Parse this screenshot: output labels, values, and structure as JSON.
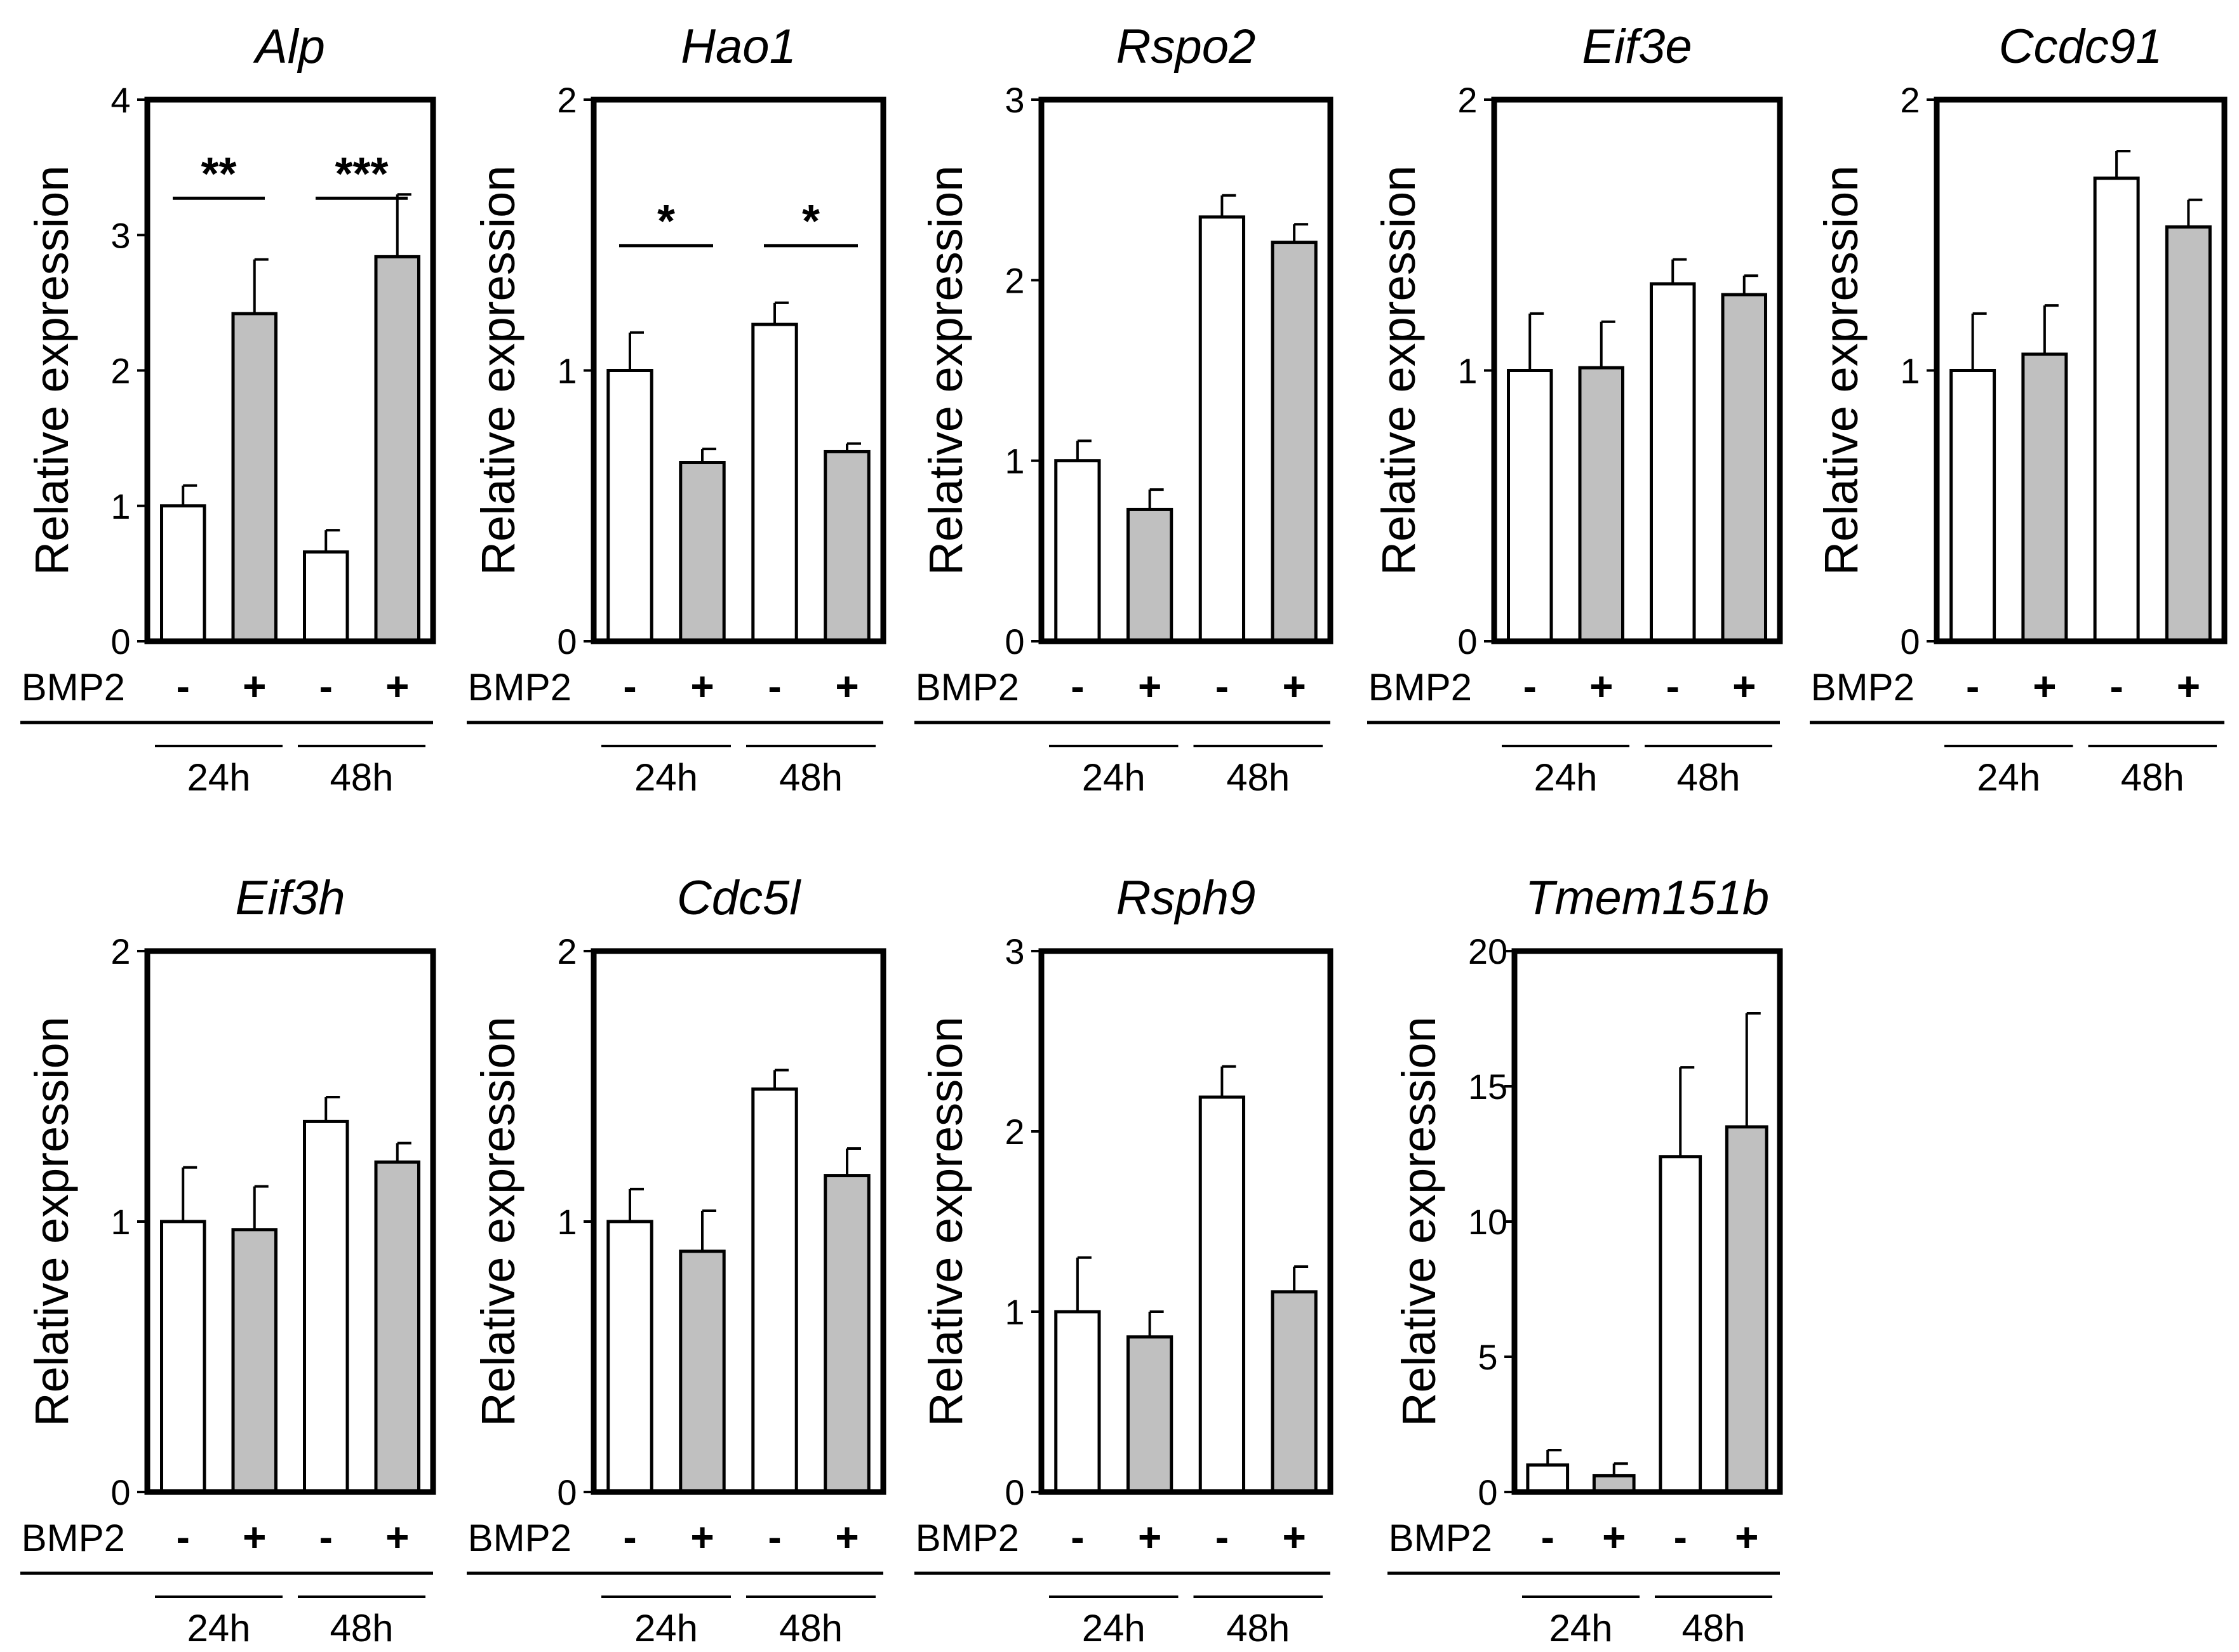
{
  "chart_data": [
    {
      "type": "bar",
      "title": "Alp",
      "ylabel": "Relative expression",
      "ylim": [
        0,
        4
      ],
      "yticks": [
        "0",
        "1",
        "2",
        "3",
        "4"
      ],
      "categories": [
        "24h -",
        "24h +",
        "48h -",
        "48h +"
      ],
      "values": [
        1.0,
        2.42,
        0.66,
        2.84
      ],
      "errors": [
        0.15,
        0.4,
        0.16,
        0.46
      ],
      "condition_label": "BMP2",
      "signs": [
        "-",
        "+",
        "-",
        "+"
      ],
      "timepoints": [
        "24h",
        "48h"
      ],
      "bar_colors": [
        "#ffffff",
        "#c0c0c0",
        "#ffffff",
        "#c0c0c0"
      ],
      "significance": [
        {
          "text": "**",
          "group": 0,
          "y": 3.45
        },
        {
          "text": "***",
          "group": 1,
          "y": 3.45
        }
      ]
    },
    {
      "type": "bar",
      "title": "Hao1",
      "ylabel": "Relative expression",
      "ylim": [
        0,
        2
      ],
      "yticks": [
        "0",
        "1",
        "2"
      ],
      "categories": [
        "24h -",
        "24h +",
        "48h -",
        "48h +"
      ],
      "values": [
        1.0,
        0.66,
        1.17,
        0.7
      ],
      "errors": [
        0.14,
        0.05,
        0.08,
        0.03
      ],
      "condition_label": "BMP2",
      "signs": [
        "-",
        "+",
        "-",
        "+"
      ],
      "timepoints": [
        "24h",
        "48h"
      ],
      "bar_colors": [
        "#ffffff",
        "#c0c0c0",
        "#ffffff",
        "#c0c0c0"
      ],
      "significance": [
        {
          "text": "*",
          "group": 0,
          "y": 1.55
        },
        {
          "text": "*",
          "group": 1,
          "y": 1.55
        }
      ]
    },
    {
      "type": "bar",
      "title": "Rspo2",
      "ylabel": "Relative expression",
      "ylim": [
        0,
        3
      ],
      "yticks": [
        "0",
        "1",
        "2",
        "3"
      ],
      "categories": [
        "24h -",
        "24h +",
        "48h -",
        "48h +"
      ],
      "values": [
        1.0,
        0.73,
        2.35,
        2.21
      ],
      "errors": [
        0.11,
        0.11,
        0.12,
        0.1
      ],
      "condition_label": "BMP2",
      "signs": [
        "-",
        "+",
        "-",
        "+"
      ],
      "timepoints": [
        "24h",
        "48h"
      ],
      "bar_colors": [
        "#ffffff",
        "#c0c0c0",
        "#ffffff",
        "#c0c0c0"
      ],
      "significance": []
    },
    {
      "type": "bar",
      "title": "Eif3e",
      "ylabel": "Relative expression",
      "ylim": [
        0,
        2
      ],
      "yticks": [
        "0",
        "1",
        "2"
      ],
      "categories": [
        "24h -",
        "24h +",
        "48h -",
        "48h +"
      ],
      "values": [
        1.0,
        1.01,
        1.32,
        1.28
      ],
      "errors": [
        0.21,
        0.17,
        0.09,
        0.07
      ],
      "condition_label": "BMP2",
      "signs": [
        "-",
        "+",
        "-",
        "+"
      ],
      "timepoints": [
        "24h",
        "48h"
      ],
      "bar_colors": [
        "#ffffff",
        "#c0c0c0",
        "#ffffff",
        "#c0c0c0"
      ],
      "significance": []
    },
    {
      "type": "bar",
      "title": "Ccdc91",
      "ylabel": "Relative expression",
      "ylim": [
        0,
        2
      ],
      "yticks": [
        "0",
        "1",
        "2"
      ],
      "categories": [
        "24h -",
        "24h +",
        "48h -",
        "48h +"
      ],
      "values": [
        1.0,
        1.06,
        1.71,
        1.53
      ],
      "errors": [
        0.21,
        0.18,
        0.1,
        0.1
      ],
      "condition_label": "BMP2",
      "signs": [
        "-",
        "+",
        "-",
        "+"
      ],
      "timepoints": [
        "24h",
        "48h"
      ],
      "bar_colors": [
        "#ffffff",
        "#c0c0c0",
        "#ffffff",
        "#c0c0c0"
      ],
      "significance": []
    },
    {
      "type": "bar",
      "title": "Eif3h",
      "ylabel": "Relative expression",
      "ylim": [
        0,
        2
      ],
      "yticks": [
        "0",
        "1",
        "2"
      ],
      "categories": [
        "24h -",
        "24h +",
        "48h -",
        "48h +"
      ],
      "values": [
        1.0,
        0.97,
        1.37,
        1.22
      ],
      "errors": [
        0.2,
        0.16,
        0.09,
        0.07
      ],
      "condition_label": "BMP2",
      "signs": [
        "-",
        "+",
        "-",
        "+"
      ],
      "timepoints": [
        "24h",
        "48h"
      ],
      "bar_colors": [
        "#ffffff",
        "#c0c0c0",
        "#ffffff",
        "#c0c0c0"
      ],
      "significance": []
    },
    {
      "type": "bar",
      "title": "Cdc5l",
      "ylabel": "Relative expression",
      "ylim": [
        0,
        2
      ],
      "yticks": [
        "0",
        "1",
        "2"
      ],
      "categories": [
        "24h -",
        "24h +",
        "48h -",
        "48h +"
      ],
      "values": [
        1.0,
        0.89,
        1.49,
        1.17
      ],
      "errors": [
        0.12,
        0.15,
        0.07,
        0.1
      ],
      "condition_label": "BMP2",
      "signs": [
        "-",
        "+",
        "-",
        "+"
      ],
      "timepoints": [
        "24h",
        "48h"
      ],
      "bar_colors": [
        "#ffffff",
        "#c0c0c0",
        "#ffffff",
        "#c0c0c0"
      ],
      "significance": []
    },
    {
      "type": "bar",
      "title": "Rsph9",
      "ylabel": "Relative expression",
      "ylim": [
        0,
        3
      ],
      "yticks": [
        "0",
        "1",
        "2",
        "3"
      ],
      "categories": [
        "24h -",
        "24h +",
        "48h -",
        "48h +"
      ],
      "values": [
        1.0,
        0.86,
        2.19,
        1.11
      ],
      "errors": [
        0.3,
        0.14,
        0.17,
        0.14
      ],
      "condition_label": "BMP2",
      "signs": [
        "-",
        "+",
        "-",
        "+"
      ],
      "timepoints": [
        "24h",
        "48h"
      ],
      "bar_colors": [
        "#ffffff",
        "#c0c0c0",
        "#ffffff",
        "#c0c0c0"
      ],
      "significance": []
    },
    {
      "type": "bar",
      "title": "Tmem151b",
      "ylabel": "Relative expression",
      "ylim": [
        0,
        20
      ],
      "yticks": [
        "0",
        "5",
        "10",
        "15",
        "20"
      ],
      "categories": [
        "24h -",
        "24h +",
        "48h -",
        "48h +"
      ],
      "values": [
        1.0,
        0.6,
        12.4,
        13.5
      ],
      "errors": [
        0.55,
        0.45,
        3.3,
        4.2
      ],
      "condition_label": "BMP2",
      "signs": [
        "-",
        "+",
        "-",
        "+"
      ],
      "timepoints": [
        "24h",
        "48h"
      ],
      "bar_colors": [
        "#ffffff",
        "#c0c0c0",
        "#ffffff",
        "#c0c0c0"
      ],
      "significance": []
    }
  ]
}
